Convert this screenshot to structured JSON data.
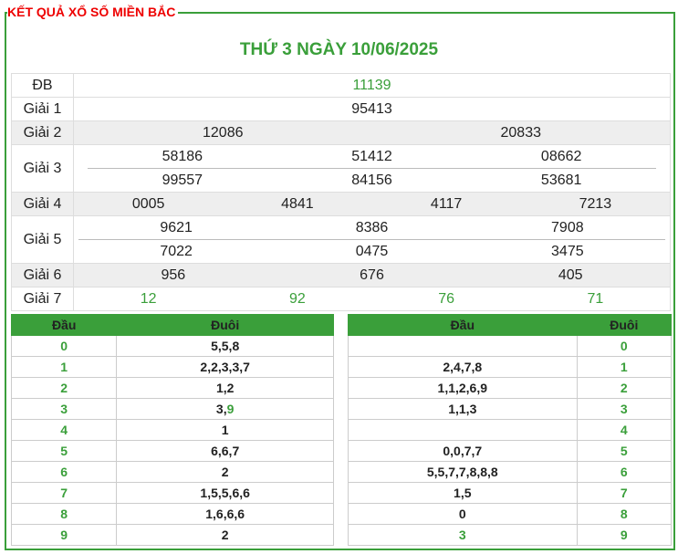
{
  "title": "KẾT QUẢ XỔ SỐ MIỀN BẮC",
  "subtitle": "THỨ 3 NGÀY 10/06/2025",
  "prizes": [
    {
      "label": "ĐB",
      "lines": [
        [
          "11139"
        ]
      ],
      "color": "#3a9f3a"
    },
    {
      "label": "Giải 1",
      "lines": [
        [
          "95413"
        ]
      ]
    },
    {
      "label": "Giải 2",
      "lines": [
        [
          "12086",
          "20833"
        ]
      ]
    },
    {
      "label": "Giải 3",
      "lines": [
        [
          "58186",
          "51412",
          "08662"
        ],
        [
          "99557",
          "84156",
          "53681"
        ]
      ]
    },
    {
      "label": "Giải 4",
      "lines": [
        [
          "0005",
          "4841",
          "4117",
          "7213"
        ]
      ]
    },
    {
      "label": "Giải 5",
      "lines": [
        [
          "9621",
          "8386",
          "7908"
        ],
        [
          "7022",
          "0475",
          "3475"
        ]
      ]
    },
    {
      "label": "Giải 6",
      "lines": [
        [
          "956",
          "676",
          "405"
        ]
      ]
    },
    {
      "label": "Giải 7",
      "lines": [
        [
          "12",
          "92",
          "76",
          "71"
        ]
      ],
      "color": "#3a9f3a"
    }
  ],
  "head_table": {
    "headers": [
      "Đầu",
      "Đuôi"
    ],
    "rows": [
      {
        "dau": "0",
        "duoi": "5,5,8"
      },
      {
        "dau": "1",
        "duoi": "2,2,3,3,7"
      },
      {
        "dau": "2",
        "duoi": "1,2"
      },
      {
        "dau": "3",
        "duoi": [
          {
            "text": "3,"
          },
          {
            "text": "9",
            "color": "#3a9f3a"
          }
        ]
      },
      {
        "dau": "4",
        "duoi": "1"
      },
      {
        "dau": "5",
        "duoi": "6,6,7"
      },
      {
        "dau": "6",
        "duoi": "2"
      },
      {
        "dau": "7",
        "duoi": "1,5,5,6,6"
      },
      {
        "dau": "8",
        "duoi": "1,6,6,6"
      },
      {
        "dau": "9",
        "duoi": "2"
      }
    ]
  },
  "tail_table": {
    "headers": [
      "Đầu",
      "Đuôi"
    ],
    "rows": [
      {
        "dau": null,
        "duoi": "0"
      },
      {
        "dau": "2,4,7,8",
        "duoi": "1"
      },
      {
        "dau": "1,1,2,6,9",
        "duoi": "2"
      },
      {
        "dau": "1,1,3",
        "duoi": "3"
      },
      {
        "dau": null,
        "duoi": "4"
      },
      {
        "dau": "0,0,7,7",
        "duoi": "5"
      },
      {
        "dau": "5,5,7,7,8,8,8",
        "duoi": "6"
      },
      {
        "dau": "1,5",
        "duoi": "7"
      },
      {
        "dau": "0",
        "duoi": "8"
      },
      {
        "dau": [
          {
            "text": "3",
            "color": "#3a9f3a"
          }
        ],
        "duoi": "9"
      }
    ]
  }
}
